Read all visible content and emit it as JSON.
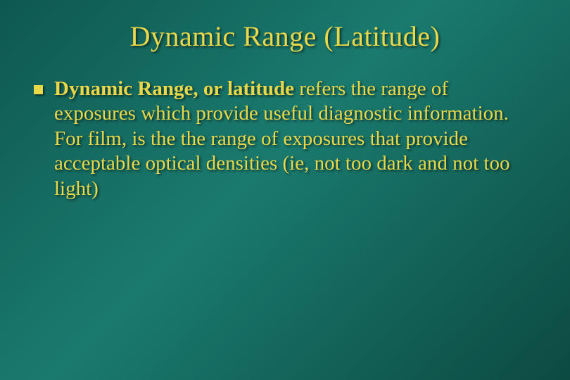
{
  "slide": {
    "title": "Dynamic Range (Latitude)",
    "bullet": {
      "lead": "Dynamic Range, or latitude",
      "rest": " refers the range  of exposures which provide useful diagnostic information.  For film, is the the range of exposures that provide acceptable optical densities (ie, not too dark and not too light)"
    }
  },
  "style": {
    "background_gradient": [
      "#0e5850",
      "#1a7a6e",
      "#0c4a42"
    ],
    "text_color": "#e8d84a",
    "title_fontsize": 40,
    "body_fontsize": 29,
    "bullet_size": 13,
    "bullet_color": "#e8d84a",
    "font_family": "Times New Roman",
    "shadow": "2px 2px 3px rgba(0,0,0,0.6)"
  }
}
